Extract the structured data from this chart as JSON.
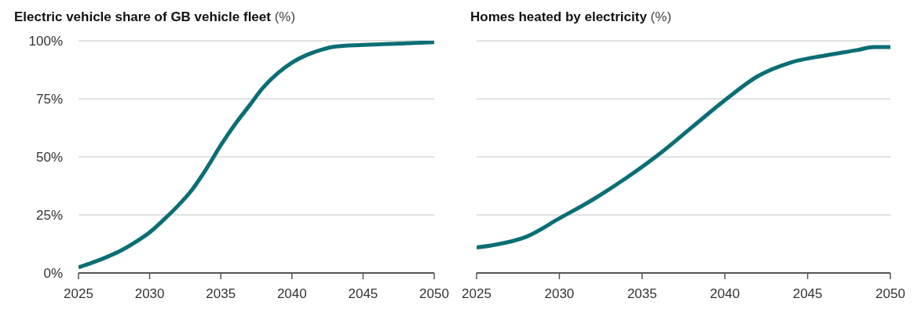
{
  "chart_data": [
    {
      "type": "line",
      "title": "Electric vehicle share of GB vehicle fleet (%)",
      "x": [
        2025,
        2026,
        2027,
        2028,
        2029,
        2030,
        2031,
        2032,
        2033,
        2034,
        2035,
        2036,
        2037,
        2038,
        2039,
        2040,
        2041,
        2042,
        2043,
        2045,
        2048,
        2050
      ],
      "series": [
        {
          "color": "#0b6e75",
          "values": [
            2.4,
            4.5,
            6.9,
            9.7,
            13.3,
            17.5,
            23,
            29,
            36,
            45,
            55,
            64,
            72,
            80,
            86,
            90.6,
            93.8,
            96,
            97.5,
            98.2,
            98.9,
            99.4
          ]
        }
      ],
      "xlim": [
        2025,
        2050
      ],
      "xticks": [
        2025,
        2030,
        2035,
        2040,
        2045,
        2050
      ],
      "ylim": [
        0,
        100
      ],
      "yticks": [
        {
          "value": 0,
          "label": "0%"
        },
        {
          "value": 25,
          "label": "25%"
        },
        {
          "value": 50,
          "label": "50%"
        },
        {
          "value": 75,
          "label": "75%"
        },
        {
          "value": 100,
          "label": "100%"
        }
      ],
      "grid": "y",
      "legend": false
    },
    {
      "type": "line",
      "title": "Homes heated by electricity (%)",
      "x": [
        2025,
        2026,
        2028,
        2030,
        2032,
        2034,
        2036,
        2038,
        2040,
        2042,
        2044,
        2046,
        2048,
        2049,
        2050
      ],
      "series": [
        {
          "color": "#0b6e75",
          "values": [
            11,
            12,
            15.6,
            23.5,
            31.5,
            40.7,
            51,
            62.7,
            74.4,
            84.8,
            90.7,
            93.6,
            96,
            97.3,
            97.3
          ]
        }
      ],
      "xlim": [
        2025,
        2050
      ],
      "xticks": [
        2025,
        2030,
        2035,
        2040,
        2045,
        2050
      ],
      "ylim": [
        0,
        100
      ],
      "yticks": [
        0,
        25,
        50,
        75,
        100
      ],
      "grid": "y",
      "legend": false,
      "tick_labels": "x"
    }
  ]
}
